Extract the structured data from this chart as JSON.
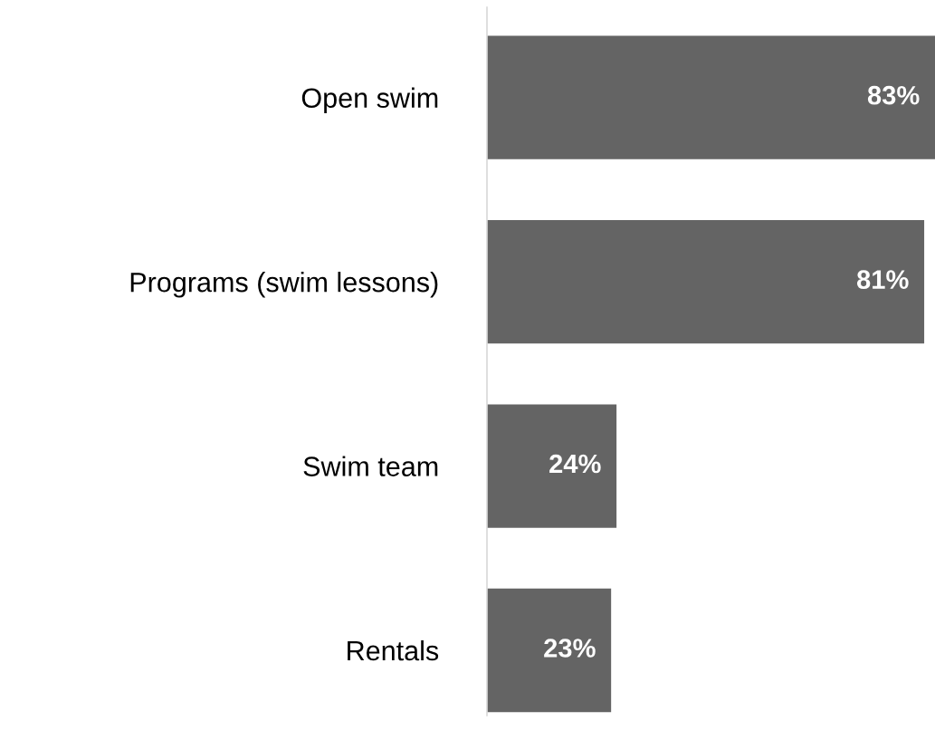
{
  "chart_data": {
    "type": "bar",
    "orientation": "horizontal",
    "categories": [
      "Open swim",
      "Programs (swim lessons)",
      "Swim team",
      "Rentals"
    ],
    "values": [
      83,
      81,
      24,
      23
    ],
    "value_labels": [
      "83%",
      "81%",
      "24%",
      "23%"
    ],
    "color": "#646464",
    "grid": false
  }
}
